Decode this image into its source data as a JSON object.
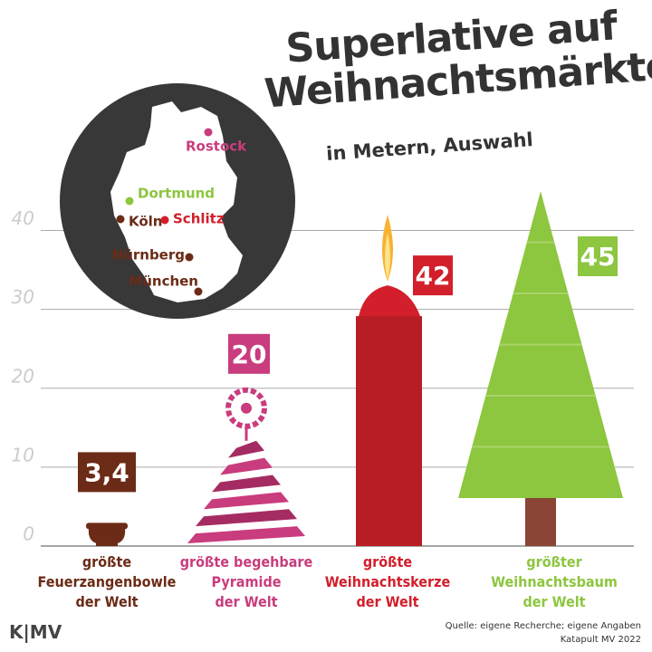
{
  "chart_data": {
    "type": "superlative",
    "title": "Superlative auf\nWeihnachtsmärkten",
    "subtitle": "in Metern, Auswahl",
    "categories": [
      "größte\nFeuerzangenbowle\nder Welt",
      "größte begehbare\nPyramide\nder Welt",
      "größte\nWeihnachtskerze\nder Welt",
      "größter\nWeihnachtsbaum\nder Welt"
    ],
    "values": [
      3.4,
      20,
      42,
      45
    ],
    "value_labels": [
      "3,4",
      "20",
      "42",
      "45"
    ],
    "colors": [
      "#6b2b16",
      "#c93c7d",
      "#d21f2b",
      "#8dc63f"
    ],
    "ylim": [
      0,
      45
    ],
    "yticks": [
      0,
      10,
      20,
      30,
      40
    ],
    "grid": true,
    "source": "Quelle: eigene Recherche; eigene Angaben",
    "credit": "Katapult MV 2022",
    "logo": "K|MV",
    "map": {
      "cities": [
        {
          "name": "Rostock",
          "color": "#c93c7d"
        },
        {
          "name": "Dortmund",
          "color": "#8dc63f"
        },
        {
          "name": "Köln",
          "color": "#6b2b16"
        },
        {
          "name": "Schlitz",
          "color": "#d21f2b"
        },
        {
          "name": "Nürnberg",
          "color": "#6b2b16"
        },
        {
          "name": "München",
          "color": "#6b2b16"
        }
      ]
    }
  }
}
